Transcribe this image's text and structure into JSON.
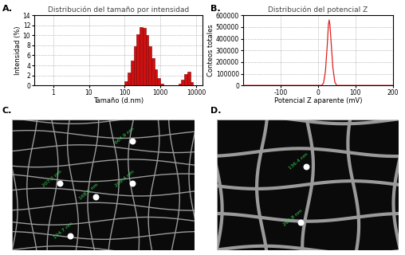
{
  "chart_data": [
    {
      "panel": "A.",
      "type": "histogram",
      "title": "Distribución del tamaño por intensidad",
      "x_label": "Tamaño (d.nm)",
      "y_label": "Intensidad (%)",
      "bins": [
        100,
        121,
        147,
        178,
        215,
        261,
        316,
        383,
        464,
        562,
        681,
        825,
        1000,
        1211,
        1468,
        1778,
        2154,
        2610,
        3162,
        3831,
        4642,
        5623,
        6813,
        8254
      ],
      "counts": [
        0.8,
        2.5,
        5.0,
        7.8,
        10.2,
        11.7,
        11.5,
        10.0,
        7.8,
        5.5,
        3.2,
        1.5,
        0.4,
        0,
        0,
        0,
        0,
        0,
        0.3,
        1.2,
        2.2,
        2.7,
        0.6
      ],
      "color": "#d01010",
      "log": "x",
      "xlim": [
        0.3,
        15000
      ],
      "xticks": [
        1,
        10,
        100,
        1000,
        10000
      ],
      "ylim": [
        0,
        14
      ],
      "yticks": [
        0,
        2,
        4,
        6,
        8,
        10,
        12,
        14
      ],
      "grid": true
    },
    {
      "panel": "B.",
      "type": "line",
      "title": "Distribución del potencial Z",
      "x_label": "Potencial Z aparente (mV)",
      "y_label": "Conteos totales",
      "x": [
        -200,
        10,
        15,
        20,
        25,
        28,
        30,
        32,
        35,
        40,
        45,
        50,
        200
      ],
      "values": [
        0,
        0,
        20000,
        120000,
        350000,
        520000,
        560000,
        520000,
        380000,
        150000,
        30000,
        0,
        0
      ],
      "color": "#e02020",
      "xlim": [
        -200,
        200
      ],
      "xticks": [
        -100,
        0,
        100,
        200
      ],
      "ylim": [
        0,
        600000
      ],
      "yticks": [
        0,
        100000,
        200000,
        300000,
        400000,
        500000,
        600000
      ],
      "grid": true
    }
  ],
  "images": [
    {
      "panel": "C.",
      "labels": [
        "664.9 nm",
        "207.2 nm",
        "168.5 nm",
        "209.4 nm",
        "194.7 nm"
      ]
    },
    {
      "panel": "D.",
      "labels": [
        "136.4 nm",
        "262.8 nm"
      ]
    }
  ]
}
